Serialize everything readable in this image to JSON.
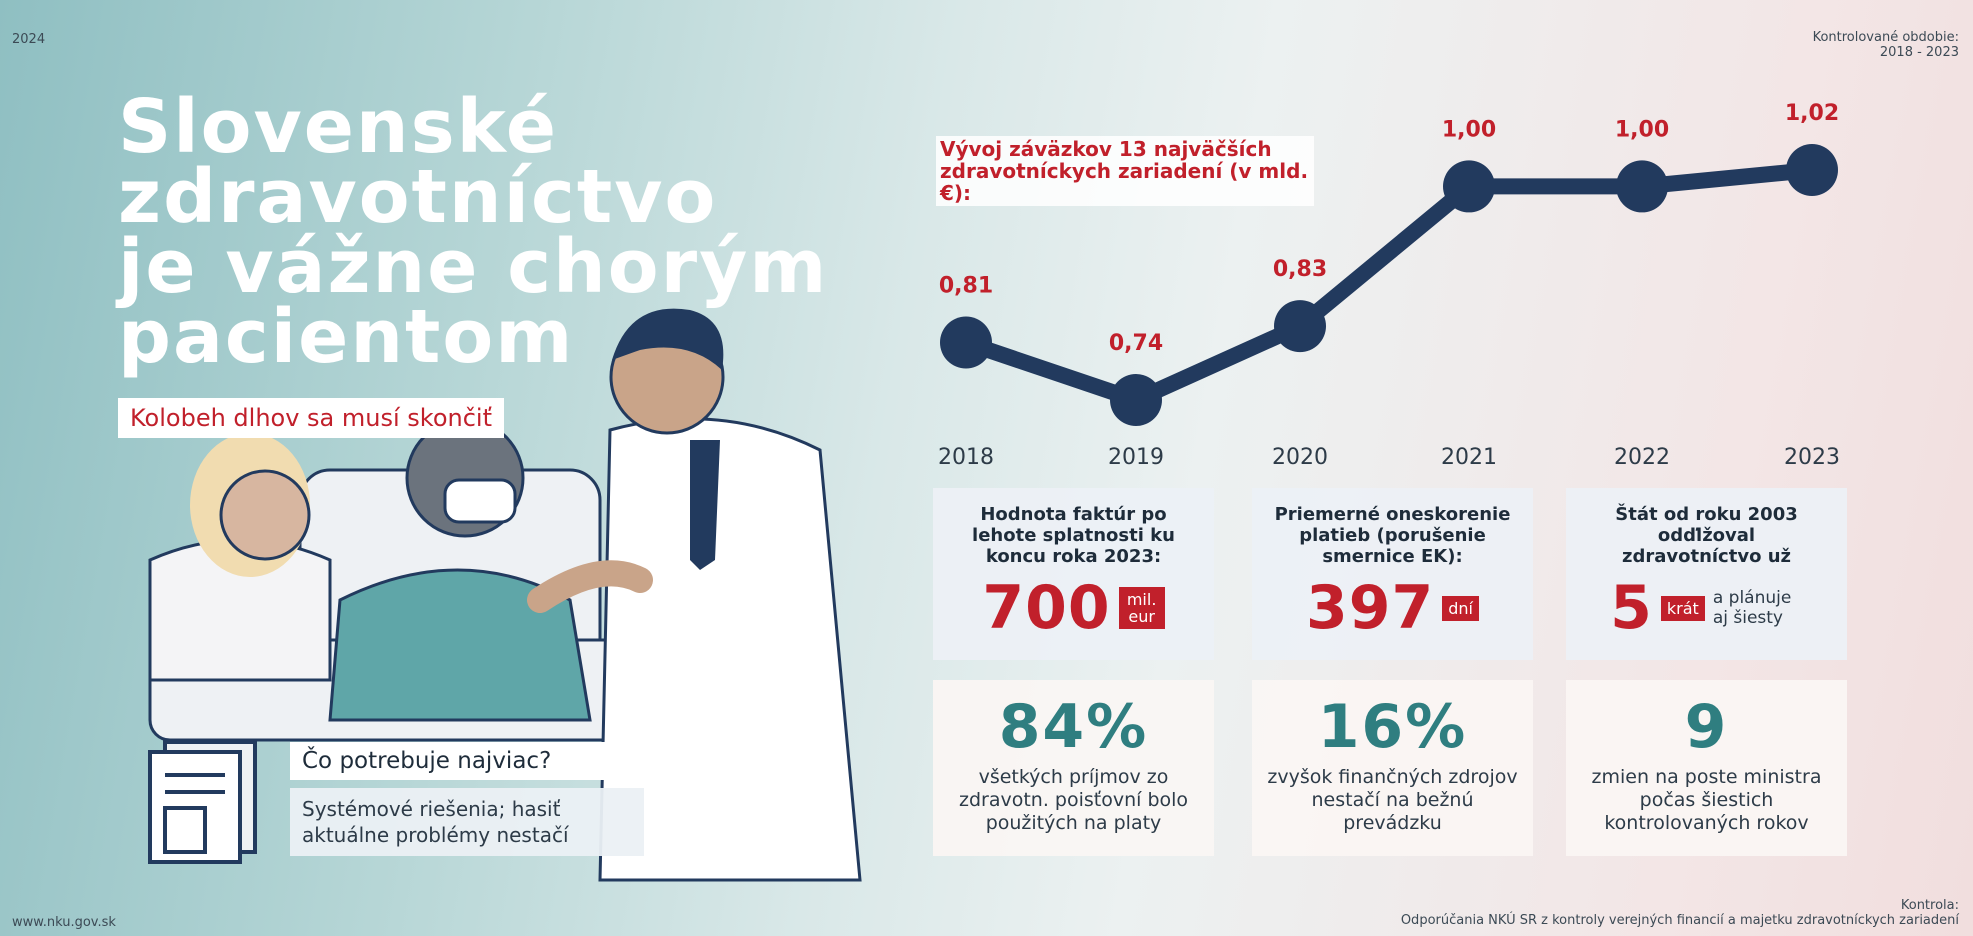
{
  "year": "2024",
  "period": {
    "label": "Kontrolované obdobie:",
    "value": "2018 - 2023"
  },
  "headline": {
    "title": [
      "Slovenské",
      "zdravotníctvo",
      "je vážne chorým",
      "pacientom"
    ],
    "subtitle": "Kolobeh dlhov sa musí skončiť"
  },
  "need": {
    "question": "Čo potrebuje najviac?",
    "answer": "Systémové riešenia; hasiť aktuálne problémy nestačí"
  },
  "chart_data": {
    "type": "line",
    "title": "Vývoj záväzkov 13 najväčších zdravotníckych zariadení (v mld. €):",
    "categories": [
      "2018",
      "2019",
      "2020",
      "2021",
      "2022",
      "2023"
    ],
    "values": [
      0.81,
      0.74,
      0.83,
      1.0,
      1.0,
      1.02
    ],
    "value_labels": [
      "0,81",
      "0,74",
      "0,83",
      "1,00",
      "1,00",
      "1,02"
    ],
    "color": "#223a5e",
    "label_color": "#c1202b"
  },
  "facts": [
    {
      "text": "Hodnota faktúr po lehote splatnosti ku koncu roka 2023:",
      "number": "700",
      "unit": "mil. eur"
    },
    {
      "text": "Priemerné oneskorenie platieb (porušenie smernice EK):",
      "number": "397",
      "unit": "dní"
    },
    {
      "text": "Štát od roku 2003 odďlžoval zdravotníctvo už",
      "number": "5",
      "unit": "krát",
      "note": "a plánuje aj šiesty"
    }
  ],
  "stats": [
    {
      "number": "84%",
      "text": "všetkých príjmov zo zdravotn. poisťovní bolo použitých na platy"
    },
    {
      "number": "16%",
      "text": "zvyšok finančných zdrojov nestačí na bežnú prevádzku"
    },
    {
      "number": "9",
      "text": "zmien na poste ministra počas šiestich kontrolovaných rokov"
    }
  ],
  "footer": {
    "website": "www.nku.gov.sk",
    "label": "Kontrola:",
    "source": "Odporúčania NKÚ SR z kontroly verejných financií a majetku zdravotníckych zariadení"
  }
}
